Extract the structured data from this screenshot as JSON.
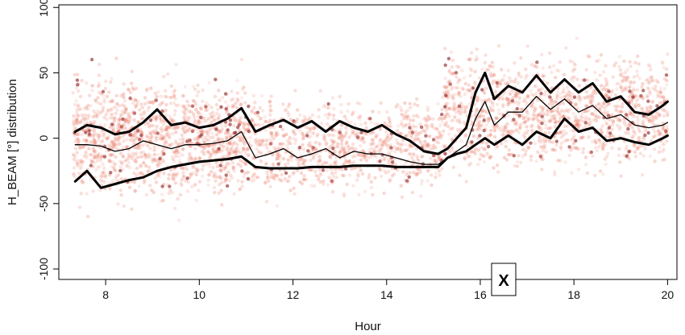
{
  "chart_data": {
    "type": "scatter",
    "title": "",
    "xlabel": "Hour",
    "ylabel": "H_BEAM [°]  distribution",
    "xlim": [
      7,
      20.2
    ],
    "ylim": [
      -108,
      102
    ],
    "x_ticks": [
      8,
      10,
      12,
      14,
      16,
      18,
      20
    ],
    "y_ticks": [
      -100,
      -50,
      0,
      50,
      100
    ],
    "y_tick_labels": [
      "-100",
      "-50",
      "0",
      "50",
      "100"
    ],
    "x_tick_labels": [
      "8",
      "10",
      "12",
      "14",
      "16",
      "18",
      "20"
    ],
    "point_color": "#e8705a",
    "dark_point_color": "#8b1a1a",
    "line_color": "#000000",
    "grid": false,
    "marker_label": "X",
    "marker_x": 16.5,
    "series": [
      {
        "role": "upper",
        "x": [
          7.35,
          7.6,
          7.9,
          8.2,
          8.5,
          8.8,
          9.1,
          9.4,
          9.7,
          10.0,
          10.3,
          10.6,
          10.9,
          11.2,
          11.5,
          11.8,
          12.1,
          12.4,
          12.7,
          13.0,
          13.3,
          13.6,
          13.9,
          14.2,
          14.5,
          14.8,
          15.1,
          15.3,
          15.5,
          15.7,
          15.9,
          16.1,
          16.3,
          16.6,
          16.9,
          17.2,
          17.5,
          17.8,
          18.1,
          18.4,
          18.7,
          19.0,
          19.3,
          19.6,
          19.9,
          20.0
        ],
        "y": [
          5,
          10,
          8,
          3,
          5,
          12,
          22,
          10,
          12,
          8,
          10,
          15,
          23,
          5,
          10,
          14,
          8,
          13,
          5,
          13,
          8,
          5,
          10,
          3,
          -2,
          -10,
          -12,
          -8,
          0,
          8,
          35,
          50,
          30,
          40,
          35,
          48,
          35,
          45,
          35,
          42,
          28,
          32,
          20,
          18,
          25,
          28
        ]
      },
      {
        "role": "median",
        "x": [
          7.35,
          7.6,
          7.9,
          8.2,
          8.5,
          8.8,
          9.1,
          9.4,
          9.7,
          10.0,
          10.3,
          10.6,
          10.9,
          11.2,
          11.5,
          11.8,
          12.1,
          12.4,
          12.7,
          13.0,
          13.3,
          13.6,
          13.9,
          14.2,
          14.5,
          14.8,
          15.1,
          15.3,
          15.5,
          15.7,
          15.9,
          16.1,
          16.3,
          16.6,
          16.9,
          17.2,
          17.5,
          17.8,
          18.1,
          18.4,
          18.7,
          19.0,
          19.3,
          19.6,
          19.9,
          20.0
        ],
        "y": [
          -5,
          -5,
          -6,
          -10,
          -8,
          -2,
          -5,
          -8,
          -5,
          -5,
          -4,
          -2,
          5,
          -15,
          -12,
          -8,
          -15,
          -12,
          -8,
          -15,
          -10,
          -12,
          -12,
          -15,
          -18,
          -20,
          -20,
          -15,
          -10,
          -5,
          15,
          28,
          10,
          20,
          20,
          32,
          22,
          30,
          20,
          25,
          15,
          18,
          10,
          8,
          10,
          12
        ]
      },
      {
        "role": "lower",
        "x": [
          7.35,
          7.6,
          7.9,
          8.2,
          8.5,
          8.8,
          9.1,
          9.4,
          9.7,
          10.0,
          10.3,
          10.6,
          10.9,
          11.2,
          11.5,
          11.8,
          12.1,
          12.4,
          12.7,
          13.0,
          13.3,
          13.6,
          13.9,
          14.2,
          14.5,
          14.8,
          15.1,
          15.3,
          15.5,
          15.7,
          15.9,
          16.1,
          16.3,
          16.6,
          16.9,
          17.2,
          17.5,
          17.8,
          18.1,
          18.4,
          18.7,
          19.0,
          19.3,
          19.6,
          19.9,
          20.0
        ],
        "y": [
          -33,
          -25,
          -38,
          -35,
          -32,
          -30,
          -25,
          -22,
          -20,
          -18,
          -17,
          -16,
          -14,
          -22,
          -23,
          -23,
          -23,
          -22,
          -22,
          -22,
          -21,
          -21,
          -21,
          -22,
          -22,
          -22,
          -22,
          -15,
          -12,
          -10,
          -5,
          0,
          -5,
          2,
          -5,
          5,
          0,
          15,
          5,
          8,
          -2,
          0,
          -3,
          -5,
          0,
          2
        ]
      }
    ],
    "scatter_density": [
      {
        "x_range": [
          7.3,
          11.0
        ],
        "y_center": 0,
        "y_spread": 55,
        "density": 1.0
      },
      {
        "x_range": [
          11.0,
          15.2
        ],
        "y_center": -5,
        "y_spread": 45,
        "density": 0.7
      },
      {
        "x_range": [
          15.2,
          20.0
        ],
        "y_center": 20,
        "y_spread": 55,
        "density": 1.0
      }
    ]
  }
}
